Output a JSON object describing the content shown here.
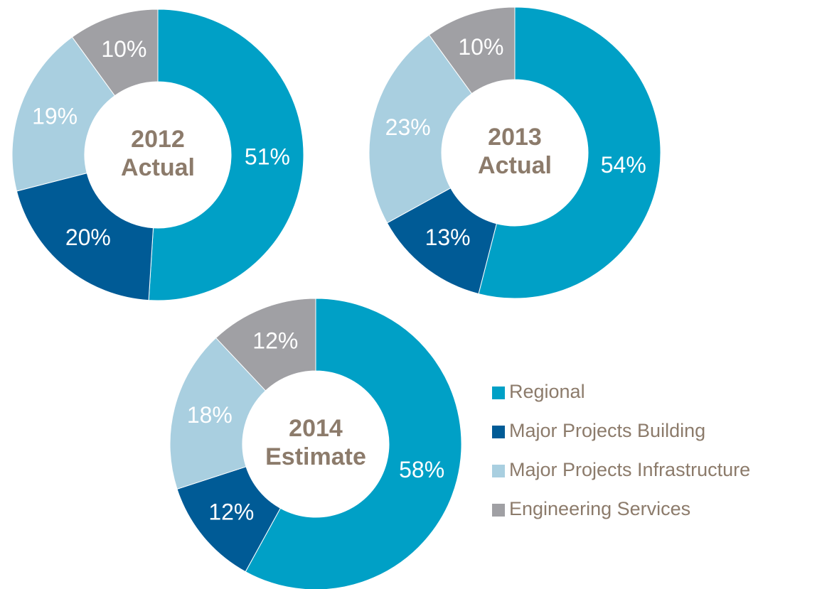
{
  "chart_data": [
    {
      "type": "donut",
      "title_lines": [
        "2012",
        "Actual"
      ],
      "values": [
        51,
        20,
        19,
        10
      ],
      "value_labels": [
        "51%",
        "20%",
        "19%",
        "10%"
      ]
    },
    {
      "type": "donut",
      "title_lines": [
        "2013",
        "Actual"
      ],
      "values": [
        54,
        13,
        23,
        10
      ],
      "value_labels": [
        "54%",
        "13%",
        "23%",
        "10%"
      ]
    },
    {
      "type": "donut",
      "title_lines": [
        "2014",
        "Estimate"
      ],
      "values": [
        58,
        12,
        18,
        12
      ],
      "value_labels": [
        "58%",
        "12%",
        "18%",
        "12%"
      ]
    }
  ],
  "legend": {
    "categories": [
      "Regional",
      "Major Projects Building",
      "Major Projects Infrastructure",
      "Engineering Services"
    ],
    "colors": [
      "#00a0c6",
      "#005b96",
      "#a9cfe0",
      "#a0a0a4"
    ]
  }
}
